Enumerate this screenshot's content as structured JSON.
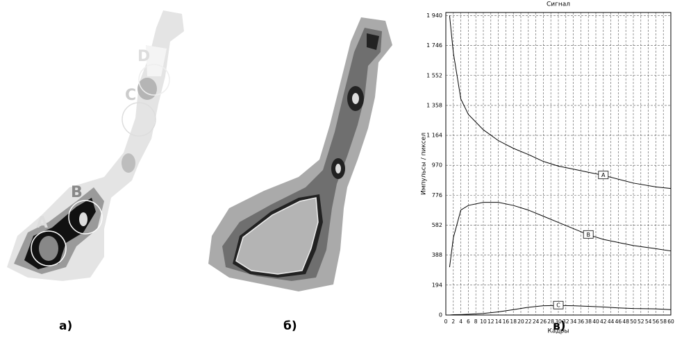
{
  "panel_labels": [
    "а)",
    "б)",
    "в)"
  ],
  "image_a": {
    "region_labels": [
      "A",
      "B",
      "C",
      "D"
    ]
  },
  "chart_data": {
    "type": "line",
    "title": "Сигнал",
    "xlabel": "Кадры",
    "ylabel": "Импульсы / пиксел",
    "x": [
      1,
      2,
      4,
      6,
      10,
      14,
      18,
      22,
      26,
      30,
      34,
      38,
      42,
      46,
      50,
      56,
      60
    ],
    "series": [
      {
        "name": "A",
        "color": "#000000",
        "values": [
          1940,
          1700,
          1400,
          1300,
          1200,
          1130,
          1080,
          1040,
          995,
          965,
          945,
          925,
          905,
          880,
          855,
          830,
          820
        ]
      },
      {
        "name": "B",
        "color": "#000000",
        "values": [
          310,
          500,
          680,
          710,
          730,
          730,
          710,
          680,
          640,
          600,
          560,
          520,
          490,
          470,
          450,
          430,
          415
        ]
      },
      {
        "name": "C",
        "color": "#000000",
        "values": [
          0,
          2,
          3,
          5,
          10,
          20,
          35,
          50,
          60,
          62,
          60,
          56,
          52,
          46,
          42,
          40,
          35
        ]
      }
    ],
    "xlim": [
      0,
      60
    ],
    "xticks": [
      0,
      2,
      4,
      6,
      8,
      10,
      12,
      14,
      16,
      18,
      20,
      22,
      24,
      26,
      28,
      30,
      32,
      34,
      36,
      38,
      40,
      42,
      44,
      46,
      48,
      50,
      52,
      54,
      56,
      58,
      60
    ],
    "ylim": [
      0,
      1960
    ],
    "yticks": [
      0,
      194,
      388,
      582,
      776,
      970,
      {
        "value": 1164,
        "label": "1 164"
      },
      {
        "value": 1358,
        "label": "1 358"
      },
      {
        "value": 1552,
        "label": "1 552"
      },
      {
        "value": 1746,
        "label": "1 746"
      },
      {
        "value": 1940,
        "label": "1 940"
      }
    ],
    "grid": true
  }
}
